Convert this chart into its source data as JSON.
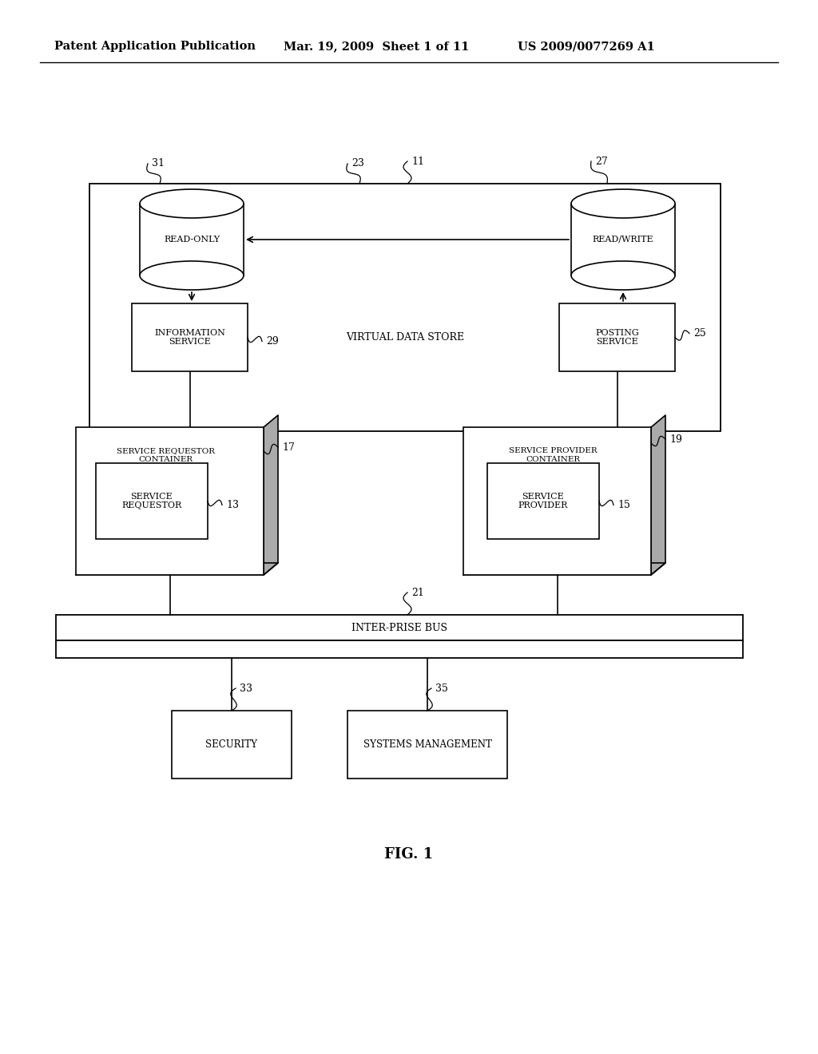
{
  "bg_color": "#ffffff",
  "header_left": "Patent Application Publication",
  "header_mid": "Mar. 19, 2009  Sheet 1 of 11",
  "header_right": "US 2009/0077269 A1",
  "fig_label": "FIG. 1",
  "virtual_data_store_label": "VIRTUAL DATA STORE",
  "read_only_label": "READ-ONLY",
  "read_write_label": "READ/WRITE",
  "info_service_label": "INFORMATION\nSERVICE",
  "posting_service_label": "POSTING\nSERVICE",
  "service_requestor_container_label": "SERVICE REQUESTOR\nCONTAINER",
  "service_requestor_label": "SERVICE\nREQUESTOR",
  "service_provider_container_label": "SERVICE PROVIDER\nCONTAINER",
  "service_provider_label": "SERVICE\nPROVIDER",
  "enterprise_bus_label": "INTER-PRISE BUS",
  "security_label": "SECURITY",
  "systems_mgmt_label": "SYSTEMS MANAGEMENT"
}
